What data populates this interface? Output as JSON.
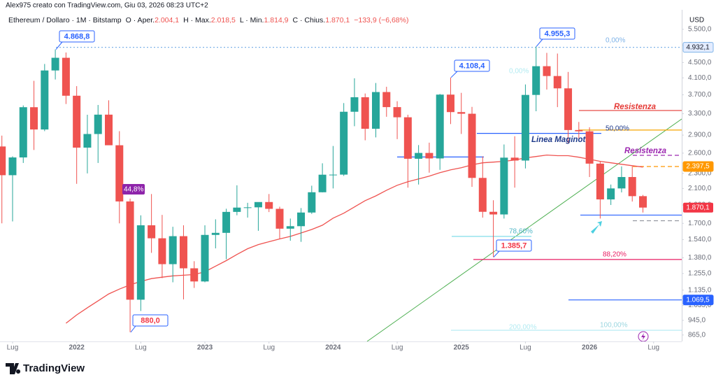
{
  "chart_data": {
    "type": "candlestick",
    "author": "Alex975 creato con TradingView.com, Giu 03, 2026 08:23 UTC+2",
    "symbol": "Ethereum / Dollaro · 1M · Bitstamp",
    "ohlc_labels": [
      "O · Aper.",
      "H · Max.",
      "L · Min.",
      "C · Chius."
    ],
    "ohlc_value_labels": [
      "2.004,1",
      "2.018,5",
      "1.814,9",
      "1.870,1"
    ],
    "change": "−133,9 (−6,68%)",
    "currency": "USD",
    "brand": "TradingView",
    "up_color": "#26a69a",
    "down_color": "#ef5350",
    "ma_color": "#ef5350",
    "log_scale": true,
    "grid": false,
    "x": [
      "2021-06",
      "2021-07",
      "2021-08",
      "2021-09",
      "2021-10",
      "2021-11",
      "2021-12",
      "2022-01",
      "2022-02",
      "2022-03",
      "2022-04",
      "2022-05",
      "2022-06",
      "2022-07",
      "2022-08",
      "2022-09",
      "2022-10",
      "2022-11",
      "2022-12",
      "2023-01",
      "2023-02",
      "2023-03",
      "2023-04",
      "2023-05",
      "2023-06",
      "2023-07",
      "2023-08",
      "2023-09",
      "2023-10",
      "2023-11",
      "2023-12",
      "2024-01",
      "2024-02",
      "2024-03",
      "2024-04",
      "2024-05",
      "2024-06",
      "2024-07",
      "2024-08",
      "2024-09",
      "2024-10",
      "2024-11",
      "2024-12",
      "2025-01",
      "2025-02",
      "2025-03",
      "2025-04",
      "2025-05",
      "2025-06",
      "2025-07",
      "2025-08",
      "2025-09",
      "2025-10",
      "2025-11",
      "2025-12",
      "2026-01",
      "2026-02",
      "2026-03",
      "2026-04",
      "2026-05",
      "2026-06"
    ],
    "open": [
      2707,
      2275,
      2533,
      3433,
      3000,
      4288,
      4630,
      3680,
      2688,
      2919,
      3282,
      2727,
      1941,
      1071,
      1680,
      1553,
      1328,
      1573,
      1295,
      1196,
      1585,
      1605,
      1822,
      1870,
      1873,
      1934,
      1856,
      1646,
      1671,
      1815,
      2052,
      2282,
      2283,
      3340,
      3646,
      3013,
      3763,
      3435,
      3230,
      2513,
      2603,
      2518,
      3705,
      3333,
      3300,
      2238,
      1823,
      1794,
      2530,
      2486,
      3698,
      4400,
      4146,
      3848,
      2990,
      2967,
      2440,
      1965,
      2100,
      2250,
      2004.1
    ],
    "high": [
      2891,
      2550,
      3470,
      4027,
      4460,
      4868.8,
      4780,
      3900,
      3280,
      3480,
      3580,
      2970,
      1975,
      1785,
      2030,
      1789,
      1665,
      1680,
      1352,
      1680,
      1742,
      1857,
      2140,
      1925,
      1930,
      2030,
      1880,
      1750,
      1865,
      2135,
      2445,
      2715,
      3520,
      4090,
      3730,
      3975,
      3885,
      3560,
      3280,
      2730,
      2770,
      3720,
      4108.4,
      3745,
      3440,
      2550,
      1955,
      2740,
      2880,
      3940,
      4955.3,
      4770,
      4750,
      4250,
      3140,
      3040,
      2480,
      2150,
      2400,
      2400,
      2018.5
    ],
    "low": [
      1700,
      1720,
      2450,
      2650,
      2970,
      4060,
      3500,
      2159,
      2300,
      2450,
      2770,
      1700,
      880,
      1000,
      1422,
      1220,
      1190,
      1073,
      1150,
      1190,
      1461,
      1368,
      1785,
      1760,
      1625,
      1820,
      1550,
      1530,
      1520,
      1800,
      2050,
      2100,
      2265,
      3060,
      2810,
      2860,
      3240,
      2830,
      2110,
      2150,
      2310,
      2350,
      3100,
      2920,
      2120,
      1760,
      1385.7,
      1750,
      2110,
      2370,
      3350,
      3820,
      3435,
      2760,
      2800,
      2250,
      1750,
      1900,
      2050,
      1940,
      1814.9
    ],
    "close": [
      2275,
      2533,
      3433,
      3000,
      4288,
      4630,
      3680,
      2688,
      2919,
      3282,
      2727,
      1941,
      1071,
      1680,
      1553,
      1328,
      1573,
      1295,
      1196,
      1585,
      1605,
      1822,
      1870,
      1873,
      1934,
      1856,
      1646,
      1671,
      1815,
      2052,
      2282,
      2283,
      3340,
      3646,
      3013,
      3763,
      3435,
      3230,
      2513,
      2603,
      2518,
      3705,
      3333,
      3300,
      2238,
      1823,
      1794,
      2530,
      2486,
      3698,
      4400,
      4146,
      3848,
      2990,
      2967,
      2440,
      1965,
      2100,
      2250,
      2004.1,
      1870.1
    ],
    "ma": [
      null,
      null,
      null,
      null,
      null,
      null,
      929,
      977,
      1020,
      1063,
      1109,
      1142,
      1172,
      1196,
      1217,
      1227,
      1237,
      1242,
      1247,
      1268,
      1312,
      1357,
      1408,
      1458,
      1495,
      1521,
      1547,
      1571,
      1604,
      1638,
      1681,
      1754,
      1808,
      1877,
      1950,
      2007,
      2077,
      2141,
      2187,
      2224,
      2262,
      2310,
      2350,
      2381,
      2422,
      2452,
      2463,
      2474,
      2494,
      2527,
      2547,
      2570,
      2560,
      2560,
      2537,
      2506,
      2474,
      2452,
      2430,
      2410,
      2390
    ],
    "last_label": "1.870,1",
    "last_color": "#f23645",
    "ylim": [
      832,
      6190
    ],
    "yticks": [
      {
        "value": 5500,
        "label": "5.500,0"
      },
      {
        "value": 5000,
        "label": "5.000,0"
      },
      {
        "value": 4500,
        "label": "4.500,0"
      },
      {
        "value": 4100,
        "label": "4.100,0"
      },
      {
        "value": 3700,
        "label": "3.700,0"
      },
      {
        "value": 3300,
        "label": "3.300,0"
      },
      {
        "value": 2900,
        "label": "2.900,0"
      },
      {
        "value": 2600,
        "label": "2.600,0"
      },
      {
        "value": 2300,
        "label": "2.300,0"
      },
      {
        "value": 2100,
        "label": "2.100,0"
      },
      {
        "value": 1900,
        "label": "1.900,0"
      },
      {
        "value": 1700,
        "label": "1.700,0"
      },
      {
        "value": 1540,
        "label": "1.540,0"
      },
      {
        "value": 1380,
        "label": "1.380,0"
      },
      {
        "value": 1255,
        "label": "1.255,0"
      },
      {
        "value": 1135,
        "label": "1.135,0"
      },
      {
        "value": 1035,
        "label": "1.035,0"
      },
      {
        "value": 945,
        "label": "945,0"
      },
      {
        "value": 865,
        "label": "865,0"
      }
    ],
    "xticks": [
      {
        "value": "2021-07",
        "label": "Lug"
      },
      {
        "value": "2022-01",
        "label": "2022"
      },
      {
        "value": "2022-07",
        "label": "Lug"
      },
      {
        "value": "2023-01",
        "label": "2023"
      },
      {
        "value": "2023-07",
        "label": "Lug"
      },
      {
        "value": "2024-01",
        "label": "2024"
      },
      {
        "value": "2024-07",
        "label": "Lug"
      },
      {
        "value": "2025-01",
        "label": "2025"
      },
      {
        "value": "2025-07",
        "label": "Lug"
      },
      {
        "value": "2026-01",
        "label": "2026"
      },
      {
        "value": "2026-07",
        "label": "Lug"
      }
    ],
    "levels": [
      {
        "value": 4932.1,
        "color": "#7fb3e8",
        "style": "dotted",
        "label": "4.932,1",
        "tag_fill": "#e3ecff",
        "tag_text": "#131722"
      },
      {
        "value": 3365,
        "color": "#e53935",
        "style": "solid"
      },
      {
        "value": 2990,
        "color": "#f7a600",
        "style": "solid"
      },
      {
        "value": 2930,
        "color": "#2962ff",
        "style": "solid"
      },
      {
        "value": 2540,
        "color": "#2962ff",
        "style": "solid"
      },
      {
        "value": 2566,
        "color": "#9c27b0",
        "style": "dashed"
      },
      {
        "value": 2397.5,
        "color": "#ff9800",
        "style": "dashed",
        "label": "2.397,5",
        "tag_fill": "#ff9800",
        "tag_text": "#ffffff"
      },
      {
        "value": 1787,
        "color": "#2962ff",
        "style": "solid"
      },
      {
        "value": 1727,
        "color": "#9598a1",
        "style": "dashed"
      },
      {
        "value": 1571,
        "color": "#80deea",
        "style": "solid"
      },
      {
        "value": 1366,
        "color": "#e91e63",
        "style": "solid"
      },
      {
        "value": 1069.5,
        "color": "#2962ff",
        "style": "solid",
        "label": "1.069,5",
        "tag_fill": "#2962ff",
        "tag_text": "#ffffff"
      },
      {
        "value": 890,
        "color": "#b2ebf2",
        "style": "solid"
      }
    ],
    "callouts": [
      {
        "value": 4868.8,
        "label": "4.868,8",
        "color": "#2962ff"
      },
      {
        "value": 880,
        "label": "880,0",
        "color": "#f23645"
      },
      {
        "value": 4108.4,
        "label": "4.108,4",
        "color": "#2962ff"
      },
      {
        "value": 1385.7,
        "label": "1.385,7",
        "color": "#f23645"
      },
      {
        "value": 4955.3,
        "label": "4.955,3",
        "color": "#2962ff"
      }
    ],
    "texts": [
      {
        "text": "0,00%",
        "color": "#7fb3e8"
      },
      {
        "text": "0,00%",
        "color": "#b2ebf2"
      },
      {
        "text": "50,00%",
        "color": "#1e3a8a"
      },
      {
        "text": "78,60%",
        "color": "#4fb6c6"
      },
      {
        "text": "88,20%",
        "color": "#e91e63"
      },
      {
        "text": "100,00%",
        "color": "#9bd6e0"
      },
      {
        "text": "200,00%",
        "color": "#b2ebf2"
      },
      {
        "text": "Resistenza",
        "color": "#e53935",
        "style": "bold-italic"
      },
      {
        "text": "Resistenza",
        "color": "#9c27b0",
        "style": "bold-italic"
      },
      {
        "text": "Linea Maginot",
        "color": "#1e3a8a",
        "style": "bold-italic"
      },
      {
        "text": "44,8%",
        "color": "#ffffff",
        "background": "#8e24aa"
      }
    ]
  }
}
